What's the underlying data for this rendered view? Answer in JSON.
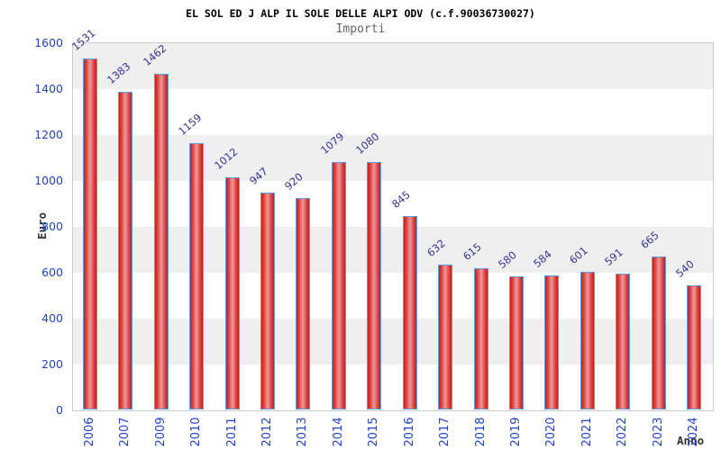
{
  "chart_data": {
    "type": "bar",
    "title": "EL SOL ED J ALP IL SOLE DELLE ALPI ODV (c.f.90036730027)",
    "subtitle": "Importi",
    "xlabel": "Anno",
    "ylabel": "Euro",
    "categories": [
      "2006",
      "2007",
      "2009",
      "2010",
      "2011",
      "2012",
      "2013",
      "2014",
      "2015",
      "2016",
      "2017",
      "2018",
      "2019",
      "2020",
      "2021",
      "2022",
      "2023",
      "2024"
    ],
    "values": [
      1531,
      1383,
      1462,
      1159,
      1012,
      947,
      920,
      1079,
      1080,
      845,
      632,
      615,
      580,
      584,
      601,
      591,
      665,
      540
    ],
    "ylim": [
      0,
      1600
    ],
    "yticks": [
      0,
      200,
      400,
      600,
      800,
      1000,
      1200,
      1400,
      1600
    ],
    "grid": "alternating-horizontal-bands",
    "legend_position": "none",
    "colors": {
      "bar_edge": "#cc1d1d",
      "bar_center": "#ef9898",
      "bar_border": "#62a0dd",
      "tick_label": "#2244cc",
      "value_label": "#333399",
      "axis_title": "#333333",
      "title": "#000000",
      "subtitle": "#666666",
      "band_gray": "#efefef",
      "plot_border": "#cccccc"
    }
  }
}
